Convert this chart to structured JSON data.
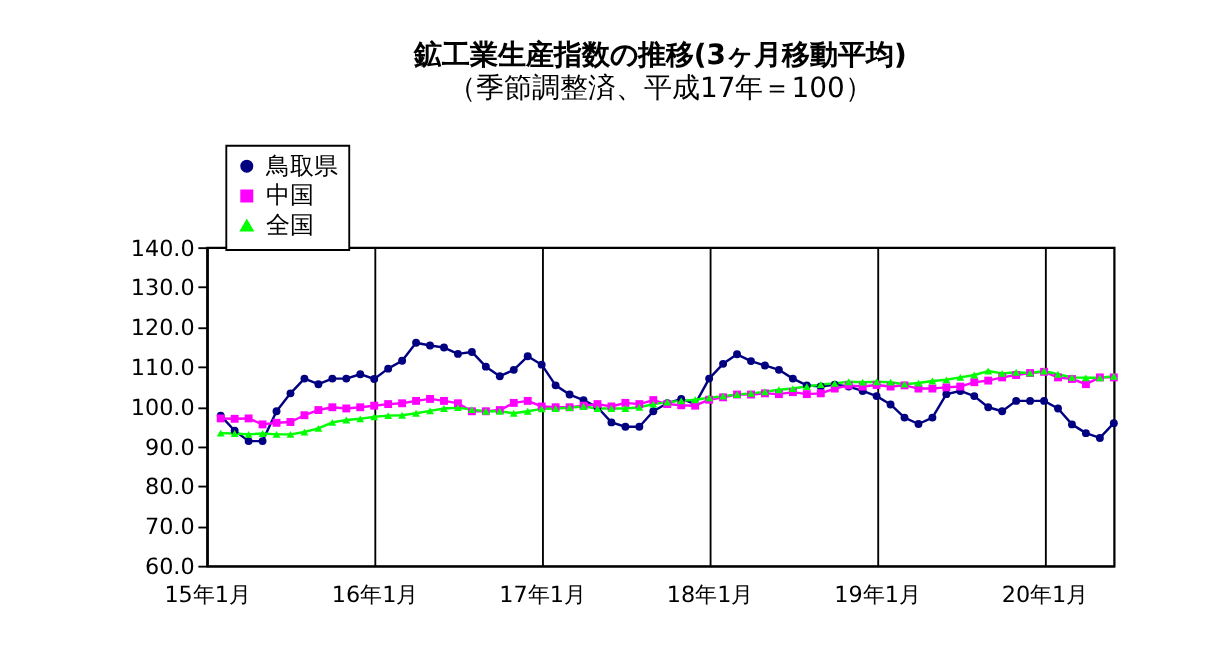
{
  "chart_data": {
    "type": "line",
    "title": "鉱工業生産指数の推移(3ヶ月移動平均)",
    "subtitle": "（季節調整済、平成17年＝100）",
    "categories": [
      "15年1月",
      null,
      null,
      null,
      null,
      null,
      null,
      null,
      null,
      null,
      null,
      null,
      "16年1月",
      null,
      null,
      null,
      null,
      null,
      null,
      null,
      null,
      null,
      null,
      null,
      "17年1月",
      null,
      null,
      null,
      null,
      null,
      null,
      null,
      null,
      null,
      null,
      null,
      "18年1月",
      null,
      null,
      null,
      null,
      null,
      null,
      null,
      null,
      null,
      null,
      null,
      "19年1月",
      null,
      null,
      null,
      null,
      null,
      null,
      null,
      null,
      null,
      null,
      null,
      "20年1月",
      null,
      null,
      null,
      null,
      null
    ],
    "series": [
      {
        "name": "鳥取県",
        "color": "#000080",
        "marker": "circle",
        "values": [
          null,
          97.7,
          93.9,
          91.3,
          91.3,
          98.8,
          103.3,
          107.0,
          105.6,
          107.0,
          107.0,
          108.1,
          106.9,
          109.5,
          111.5,
          116.0,
          115.3,
          114.8,
          113.2,
          113.7,
          110.0,
          107.6,
          109.2,
          112.6,
          110.5,
          105.3,
          103.0,
          101.6,
          99.8,
          96.0,
          94.9,
          94.9,
          98.8,
          100.8,
          101.9,
          100.6,
          107.0,
          110.7,
          113.1,
          111.4,
          110.3,
          109.2,
          107.0,
          105.3,
          105.0,
          105.5,
          105.0,
          103.9,
          102.6,
          100.5,
          97.2,
          95.6,
          97.2,
          103.1,
          103.9,
          102.6,
          99.8,
          98.8,
          101.4,
          101.4,
          101.4,
          99.5,
          95.5,
          93.3,
          92.1,
          95.8
        ]
      },
      {
        "name": "中国",
        "color": "#ff00ff",
        "marker": "square",
        "values": [
          null,
          97.0,
          96.9,
          97.0,
          95.5,
          95.9,
          96.1,
          97.8,
          99.1,
          99.8,
          99.5,
          99.8,
          100.2,
          100.6,
          100.8,
          101.4,
          101.9,
          101.4,
          100.8,
          98.8,
          98.8,
          99.1,
          100.9,
          101.4,
          100.0,
          99.8,
          99.8,
          100.2,
          100.6,
          100.0,
          100.9,
          100.6,
          101.6,
          100.6,
          100.3,
          100.2,
          101.7,
          102.3,
          103.0,
          103.0,
          103.3,
          103.1,
          103.6,
          103.1,
          103.3,
          104.5,
          105.3,
          105.0,
          105.4,
          105.0,
          105.3,
          104.5,
          104.5,
          104.8,
          105.0,
          106.1,
          106.5,
          107.3,
          107.9,
          108.4,
          108.7,
          107.3,
          106.9,
          105.6,
          107.3,
          107.3
        ]
      },
      {
        "name": "全国",
        "color": "#00ff00",
        "marker": "triangle",
        "values": [
          null,
          93.3,
          93.2,
          93.0,
          93.2,
          93.0,
          93.0,
          93.6,
          94.5,
          96.0,
          96.6,
          96.9,
          97.4,
          97.7,
          97.8,
          98.3,
          98.9,
          99.5,
          99.7,
          99.2,
          98.8,
          98.8,
          98.3,
          98.8,
          99.4,
          99.5,
          99.7,
          100.0,
          99.5,
          99.5,
          99.5,
          99.8,
          100.6,
          101.1,
          101.4,
          101.7,
          102.2,
          102.6,
          103.0,
          103.3,
          103.7,
          104.2,
          104.5,
          105.0,
          105.5,
          105.8,
          106.2,
          106.1,
          106.2,
          106.1,
          105.6,
          105.9,
          106.4,
          106.7,
          107.3,
          107.9,
          108.9,
          108.3,
          108.6,
          108.4,
          108.9,
          108.1,
          107.3,
          107.2,
          107.2,
          107.6
        ]
      }
    ],
    "ylim": [
      60,
      140
    ],
    "yticks": [
      {
        "value": 60,
        "label": "60.0"
      },
      {
        "value": 70,
        "label": "70.0"
      },
      {
        "value": 80,
        "label": "80.0"
      },
      {
        "value": 90,
        "label": "90.0"
      },
      {
        "value": 100,
        "label": "100.0"
      },
      {
        "value": 110,
        "label": "110.0"
      },
      {
        "value": 120,
        "label": "120.0"
      },
      {
        "value": 130,
        "label": "130.0"
      },
      {
        "value": 140,
        "label": "140.0"
      }
    ],
    "grid": "x",
    "legend": "top left",
    "line_style": "solid"
  }
}
